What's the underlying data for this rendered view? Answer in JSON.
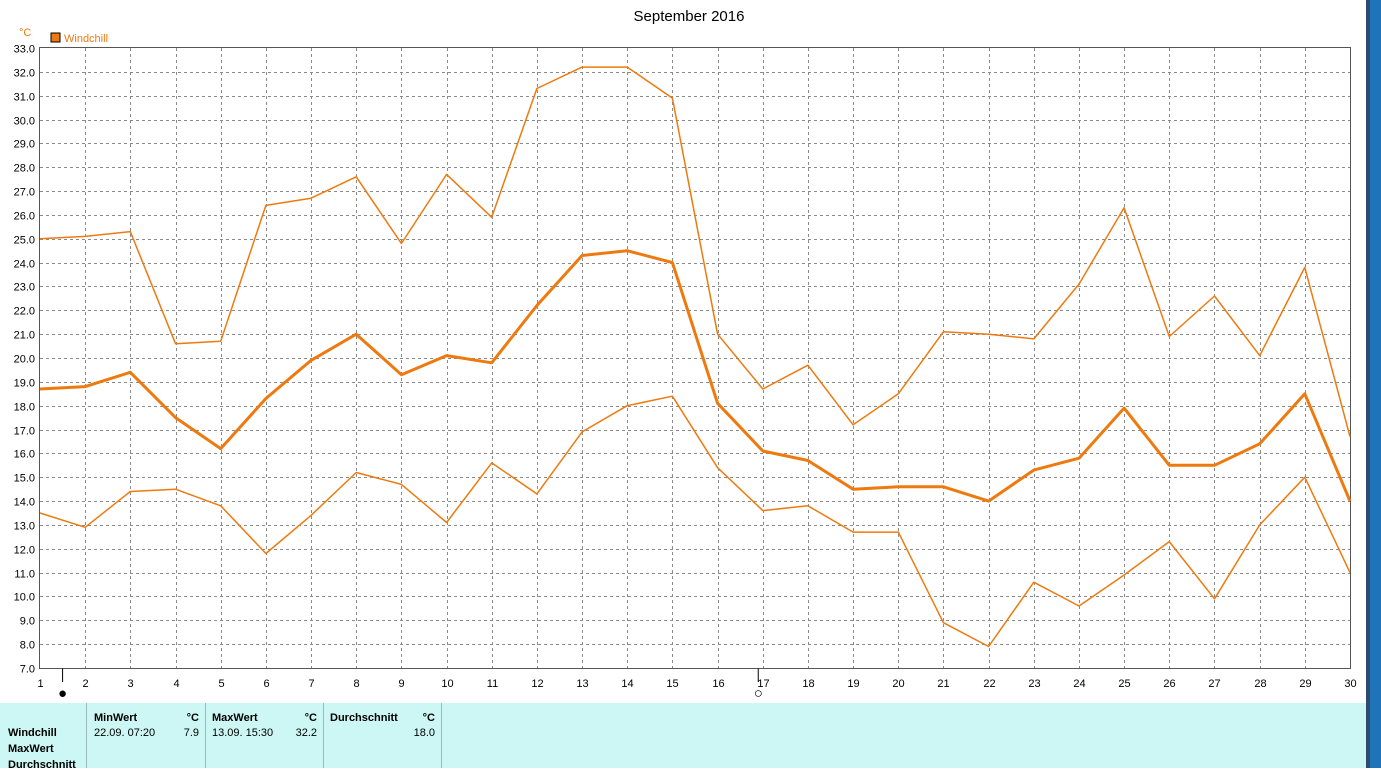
{
  "chart_data": {
    "type": "line",
    "title": "September 2016",
    "unit": "°C",
    "legend": {
      "label": "Windchill",
      "color": "#ee7a0f",
      "placement": "top-left"
    },
    "xlim": [
      1,
      30
    ],
    "ylim": [
      7.0,
      33.0
    ],
    "grid": true,
    "x": [
      1,
      2,
      3,
      4,
      5,
      6,
      7,
      8,
      9,
      10,
      11,
      12,
      13,
      14,
      15,
      16,
      17,
      18,
      19,
      20,
      21,
      22,
      23,
      24,
      25,
      26,
      27,
      28,
      29,
      30
    ],
    "x_tick_labels": [
      "1",
      "2",
      "3",
      "4",
      "5",
      "6",
      "7",
      "8",
      "9",
      "10",
      "11",
      "12",
      "13",
      "14",
      "15",
      "16",
      "17",
      "18",
      "19",
      "20",
      "21",
      "22",
      "23",
      "24",
      "25",
      "26",
      "27",
      "28",
      "29",
      "30"
    ],
    "y_tick_labels": [
      "7.0",
      "8.0",
      "9.0",
      "10.0",
      "11.0",
      "12.0",
      "13.0",
      "14.0",
      "15.0",
      "16.0",
      "17.0",
      "18.0",
      "19.0",
      "20.0",
      "21.0",
      "22.0",
      "23.0",
      "24.0",
      "25.0",
      "26.0",
      "27.0",
      "28.0",
      "29.0",
      "30.0",
      "31.0",
      "32.0",
      "33.0"
    ],
    "series": [
      {
        "role": "max",
        "width": 1.5,
        "values": [
          25.0,
          25.1,
          25.3,
          20.6,
          20.7,
          26.4,
          26.7,
          27.6,
          24.8,
          27.7,
          25.9,
          31.3,
          32.2,
          32.2,
          30.9,
          21.0,
          18.7,
          19.7,
          17.2,
          18.5,
          21.1,
          21.0,
          20.8,
          23.1,
          26.3,
          20.9,
          22.6,
          20.1,
          23.8,
          16.7
        ]
      },
      {
        "role": "average",
        "width": 3,
        "values": [
          18.7,
          18.8,
          19.4,
          17.5,
          16.2,
          18.3,
          19.9,
          21.0,
          19.3,
          20.1,
          19.8,
          22.2,
          24.3,
          24.5,
          24.0,
          18.1,
          16.1,
          15.7,
          14.5,
          14.6,
          14.6,
          14.0,
          15.3,
          15.8,
          17.9,
          15.5,
          15.5,
          16.4,
          18.5,
          14.0
        ]
      },
      {
        "role": "min",
        "width": 1.5,
        "values": [
          13.5,
          12.9,
          14.4,
          14.5,
          13.8,
          11.8,
          13.4,
          15.2,
          14.7,
          13.1,
          15.6,
          14.3,
          16.9,
          18.0,
          18.4,
          15.4,
          13.6,
          13.8,
          12.7,
          12.7,
          8.9,
          7.9,
          10.6,
          9.6,
          10.9,
          12.3,
          9.9,
          13.0,
          15.0,
          11.0
        ]
      }
    ],
    "moon_markers": [
      {
        "day": 1.5,
        "symbol": "●",
        "marker_name": "new-moon-icon"
      },
      {
        "day": 16.9,
        "symbol": "○",
        "marker_name": "full-moon-icon"
      }
    ]
  },
  "stats": {
    "rows": [
      "Windchill",
      "MaxWert",
      "Durchschnitt"
    ],
    "columns": [
      {
        "header": "MinWert",
        "unit": "°C",
        "when": "22.09.  07:20",
        "value": "7.9"
      },
      {
        "header": "MaxWert",
        "unit": "°C",
        "when": "13.09.  15:30",
        "value": "32.2"
      },
      {
        "header": "Durchschnitt",
        "unit": "°C",
        "when": "",
        "value": "18.0"
      }
    ]
  }
}
